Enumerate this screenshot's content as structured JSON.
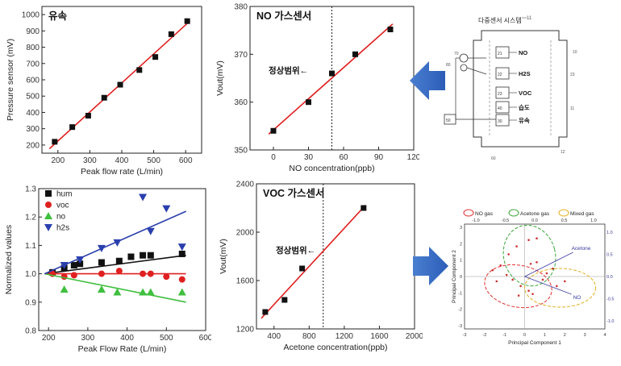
{
  "chart_data": [
    {
      "id": "flow",
      "type": "scatter",
      "title": "유속",
      "xlabel": "Peak flow rate (L/min)",
      "ylabel": "Pressure sensor (mV)",
      "xlim": [
        150,
        650
      ],
      "ylim": [
        150,
        1050
      ],
      "xticks": [
        200,
        300,
        400,
        500,
        600
      ],
      "yticks": [
        200,
        300,
        400,
        500,
        600,
        700,
        800,
        900,
        1000
      ],
      "x": [
        190,
        245,
        295,
        345,
        395,
        455,
        505,
        555,
        605
      ],
      "y": [
        220,
        310,
        380,
        490,
        570,
        660,
        740,
        880,
        960
      ],
      "fit": true
    },
    {
      "id": "no",
      "type": "scatter",
      "title": "NO 가스센서",
      "xlabel": "NO concentration(ppb)",
      "ylabel": "Vout(mV)",
      "xlim": [
        -20,
        120
      ],
      "ylim": [
        350,
        380
      ],
      "xticks": [
        0,
        30,
        60,
        90,
        120
      ],
      "yticks": [
        350,
        360,
        370,
        380
      ],
      "x": [
        0,
        30,
        50,
        70,
        100
      ],
      "y": [
        354,
        360,
        366,
        370,
        375.2
      ],
      "fit": true,
      "normal_range_line_x": 50,
      "annotation": "정상범위←"
    },
    {
      "id": "norm",
      "type": "scatter",
      "xlabel": "Peak Flow Rate (L/min)",
      "ylabel": "Normalized values",
      "xlim": [
        175,
        600
      ],
      "ylim": [
        0.8,
        1.3
      ],
      "xticks": [
        200,
        300,
        400,
        500,
        600
      ],
      "yticks": [
        0.8,
        0.9,
        1.0,
        1.1,
        1.2,
        1.3
      ],
      "series": [
        {
          "name": "hum",
          "color": "#111111",
          "marker": "square",
          "x": [
            210,
            240,
            265,
            280,
            335,
            380,
            410,
            440,
            460,
            540
          ],
          "y": [
            1.005,
            1.02,
            1.03,
            1.035,
            1.04,
            1.045,
            1.06,
            1.065,
            1.065,
            1.07
          ],
          "fit": [
            1.0,
            1.065
          ]
        },
        {
          "name": "voc",
          "color": "#e02020",
          "marker": "circle",
          "x": [
            210,
            240,
            265,
            335,
            380,
            440,
            460,
            500,
            540
          ],
          "y": [
            1.0,
            0.99,
            0.995,
            1.0,
            1.01,
            1.0,
            1.0,
            0.99,
            0.98
          ],
          "fit": [
            1.0,
            1.0
          ]
        },
        {
          "name": "no",
          "color": "#3fbf3f",
          "marker": "triangle",
          "x": [
            240,
            335,
            375,
            440,
            460,
            540
          ],
          "y": [
            0.945,
            0.945,
            0.935,
            0.935,
            0.935,
            0.935
          ],
          "fit": [
            1.0,
            0.9
          ]
        },
        {
          "name": "h2s",
          "color": "#2a3fae",
          "marker": "triangle-down",
          "x": [
            240,
            280,
            335,
            375,
            440,
            460,
            500,
            540
          ],
          "y": [
            1.03,
            1.05,
            1.09,
            1.11,
            1.27,
            1.15,
            1.23,
            1.095
          ],
          "fit": [
            1.0,
            1.22
          ]
        }
      ]
    },
    {
      "id": "voc",
      "type": "scatter",
      "title": "VOC 가스센서",
      "xlabel": "Acetone concentration(ppb)",
      "ylabel": "Vout(mV)",
      "xlim": [
        200,
        2000
      ],
      "ylim": [
        1200,
        2400
      ],
      "xticks": [
        400,
        800,
        1200,
        1600,
        2000
      ],
      "xticklabels": [
        "400",
        "800",
        "1200",
        "1600",
        "2000"
      ],
      "yticks": [
        1200,
        1600,
        2000,
        2400
      ],
      "x": [
        300,
        520,
        720,
        1420
      ],
      "y": [
        1340,
        1440,
        1700,
        2200
      ],
      "fit": true,
      "normal_range_line_x": 960,
      "annotation": "정상범위←"
    }
  ],
  "diagram": {
    "title": "다중센서 시스템",
    "sensors": [
      "NO",
      "H2S",
      "VOC",
      "습도",
      "유속"
    ],
    "small_numbers": [
      "11",
      "10",
      "70",
      "80",
      "21",
      "22",
      "23",
      "40",
      "50",
      "30",
      "60",
      "12"
    ]
  },
  "pca": {
    "legend": [
      "NO gas",
      "Acetone gas",
      "Mixed gas"
    ],
    "legend_colors": [
      "#e03030",
      "#3aa63a",
      "#e0b020"
    ],
    "xlabel": "Principal Component 1",
    "ylabel": "Principal Component 2",
    "labels": [
      "Acetone",
      "NO"
    ],
    "xticks": [
      "-3",
      "-2",
      "-1",
      "0",
      "1",
      "2",
      "3",
      "4"
    ],
    "yticks": [
      "3",
      "2",
      "1",
      "0",
      "-1",
      "-2",
      "-3"
    ],
    "top_ticks": [
      "-1.0",
      "-0.5",
      "0.0",
      "0.5",
      "1.0"
    ],
    "right_ticks": [
      "1.0",
      "0.5",
      "0.0",
      "-0.5",
      "-1.0"
    ]
  }
}
